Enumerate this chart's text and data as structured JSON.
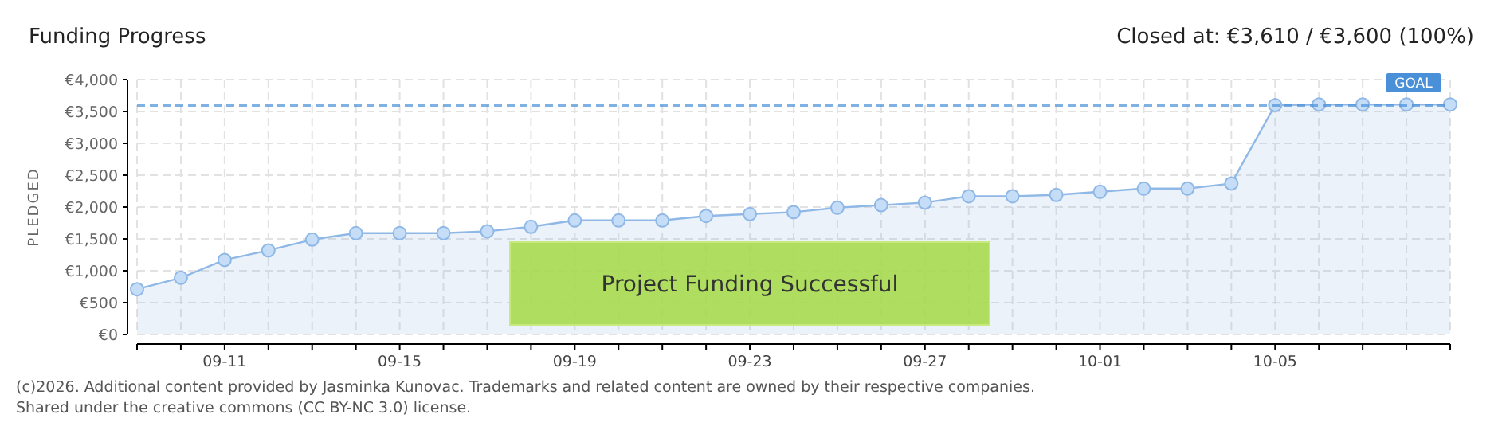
{
  "chart_data": {
    "type": "area",
    "title": "Funding Progress",
    "subtitle": "Closed at:  €3,610 / €3,600 (100%)",
    "ylabel": "PLEDGED",
    "categories": [
      null,
      null,
      "09-11",
      null,
      null,
      null,
      "09-15",
      null,
      null,
      null,
      "09-19",
      null,
      null,
      null,
      "09-23",
      null,
      null,
      null,
      "09-27",
      null,
      null,
      null,
      "10-01",
      null,
      null,
      null,
      "10-05",
      null,
      null,
      null,
      null
    ],
    "series": [
      {
        "color": "#8fb8e6",
        "values": [
          710,
          890,
          1170,
          1320,
          1490,
          1590,
          1590,
          1590,
          1620,
          1690,
          1790,
          1790,
          1790,
          1860,
          1890,
          1920,
          1990,
          2030,
          2070,
          2170,
          2170,
          2190,
          2240,
          2290,
          2290,
          2370,
          3600,
          3610,
          3610,
          3610,
          3610
        ]
      }
    ],
    "ylim": [
      0,
      4000
    ],
    "yticks": [
      {
        "value": 0,
        "label": "€0"
      },
      {
        "value": 500,
        "label": "€500"
      },
      {
        "value": 1000,
        "label": "€1,000"
      },
      {
        "value": 1500,
        "label": "€1,500"
      },
      {
        "value": 2000,
        "label": "€2,000"
      },
      {
        "value": 2500,
        "label": "€2,500"
      },
      {
        "value": 3000,
        "label": "€3,000"
      },
      {
        "value": 3500,
        "label": "€3,500"
      },
      {
        "value": 4000,
        "label": "€4,000"
      }
    ],
    "grid": true,
    "marker": "circle",
    "ref_lines": [
      {
        "axis": "y",
        "value": 3600,
        "label": "GOAL",
        "color": "#4a90d9",
        "line_style": "dashed"
      }
    ],
    "annotations": [
      "Project Funding Successful",
      "(c)2026. Additional content provided by Jasminka Kunovac. Trademarks and related content are owned by their respective companies.",
      "Shared under the creative commons (CC BY-NC 3.0) license."
    ]
  }
}
